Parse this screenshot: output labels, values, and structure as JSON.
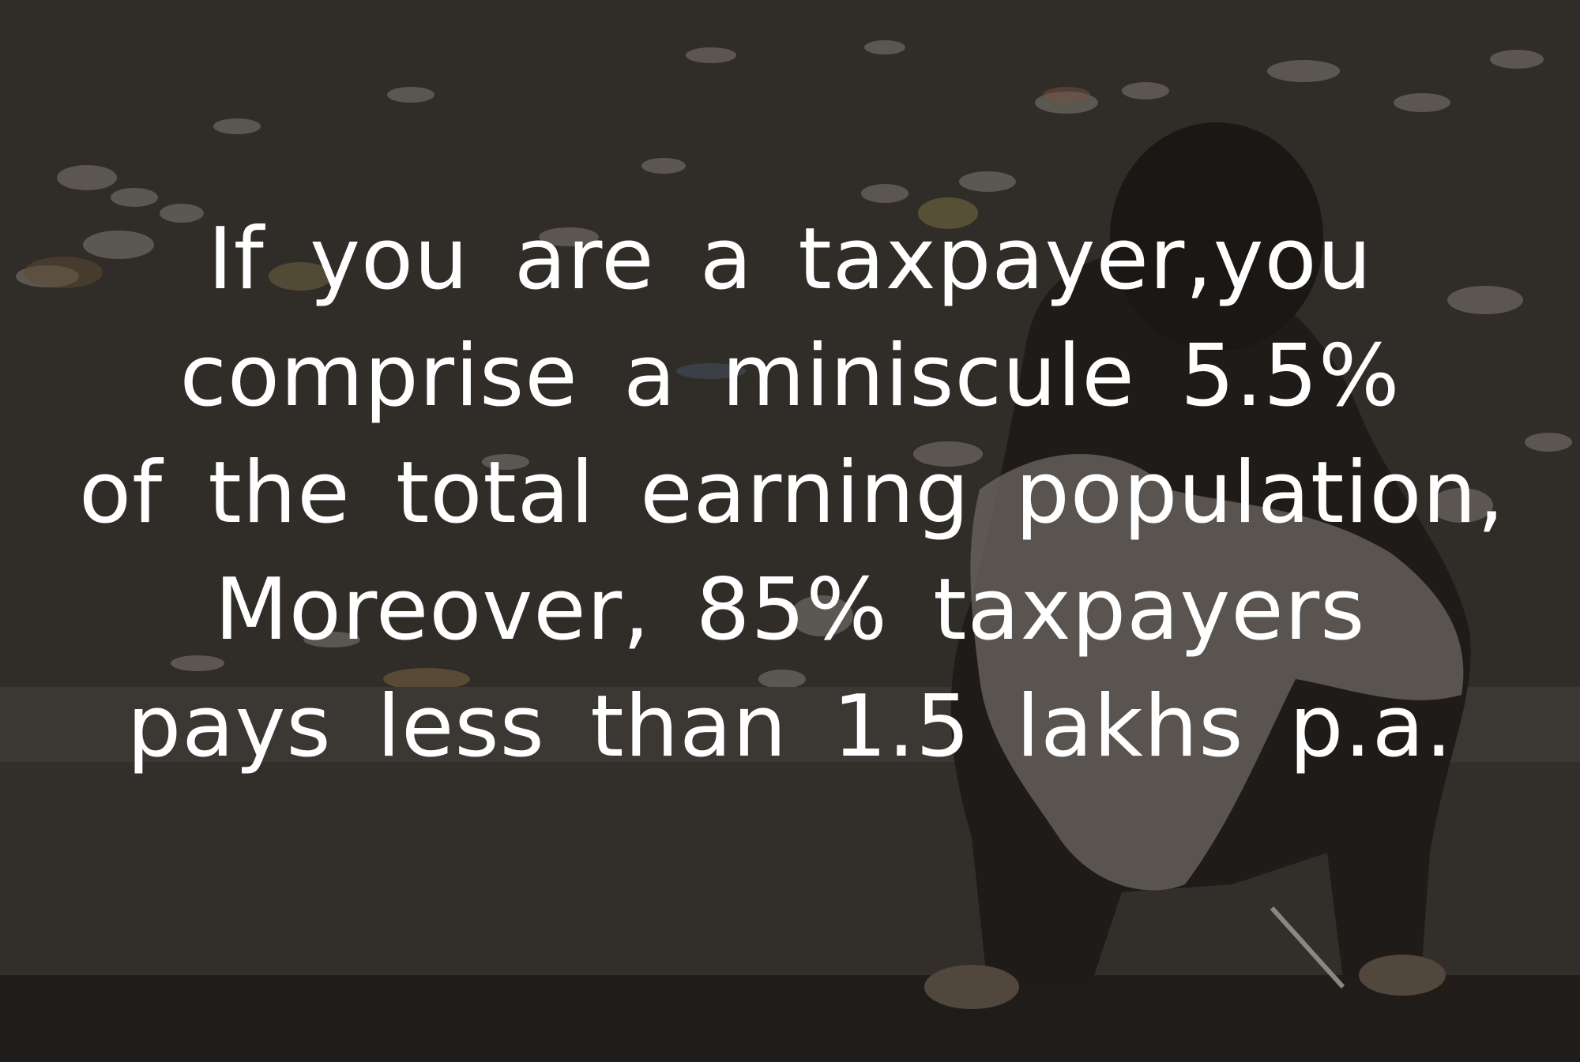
{
  "quote": {
    "lines": [
      "If you are a taxpayer,you",
      "comprise a miniscule 5.5%",
      "of the total earning population,",
      "Moreover, 85% taxpayers",
      "pays less than 1.5 lakhs p.a."
    ]
  },
  "colors": {
    "text": "#ffffff",
    "ground": "#3a3531",
    "curb": "#4a4642",
    "figure": "#231f1c",
    "garment": "#8f8a82",
    "debris": "#b9b3aa"
  }
}
